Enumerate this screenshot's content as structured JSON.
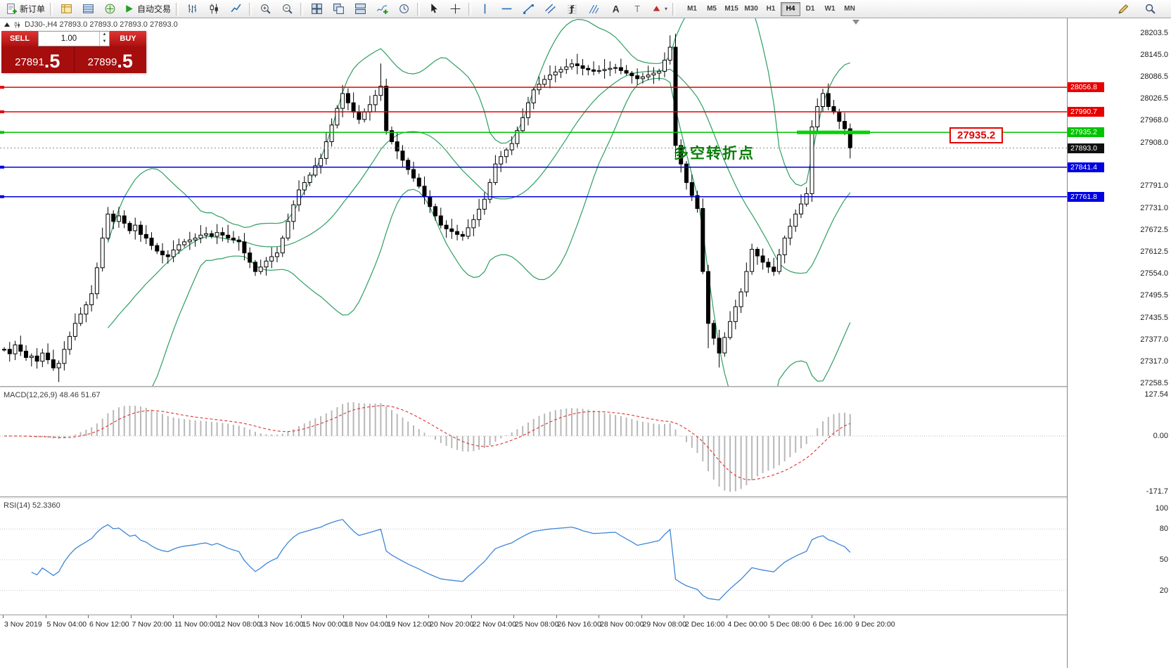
{
  "toolbar": {
    "new_order": "新订单",
    "autotrade": "自动交易",
    "timeframes": [
      "M1",
      "M5",
      "M15",
      "M30",
      "H1",
      "H4",
      "D1",
      "W1",
      "MN"
    ],
    "active_timeframe": "H4"
  },
  "chart": {
    "title": "DJ30-,H4 27893.0 27893.0 27893.0 27893.0",
    "annotation": "多空转折点",
    "float_label": "27935.2",
    "axis_ticks": [
      "28203.5",
      "28145.0",
      "28086.5",
      "28026.5",
      "27968.0",
      "27908.0",
      "27791.0",
      "27731.0",
      "27672.5",
      "27612.5",
      "27554.0",
      "27495.5",
      "27435.5",
      "27377.0",
      "27317.0",
      "27258.5"
    ],
    "lines": [
      {
        "price": 28056.8,
        "label": "28056.8",
        "color": "#e80000"
      },
      {
        "price": 27990.7,
        "label": "27990.7",
        "color": "#e80000"
      },
      {
        "price": 27935.2,
        "label": "27935.2",
        "color": "#00c400"
      },
      {
        "price": 27841.4,
        "label": "27841.4",
        "color": "#0000e0"
      },
      {
        "price": 27761.8,
        "label": "27761.8",
        "color": "#0000e0"
      }
    ],
    "current_price": {
      "price": 27893.0,
      "label": "27893.0",
      "tag_bg": "#101010"
    },
    "thick_segment": {
      "price": 27935.2,
      "color": "#00d400"
    }
  },
  "trade_panel": {
    "sell_label": "SELL",
    "buy_label": "BUY",
    "volume": "1.00",
    "sell_price": "27891",
    "sell_price_frac": ".5",
    "buy_price": "27899",
    "buy_price_frac": ".5"
  },
  "macd": {
    "label": "MACD(12,26,9) 48.46 51.67",
    "axis": [
      "127.54",
      "0.00",
      "-171.7"
    ]
  },
  "rsi": {
    "label": "RSI(14) 52.3360",
    "axis": [
      "100",
      "80",
      "50",
      "20"
    ],
    "levels": [
      80,
      50,
      20
    ]
  },
  "time_axis": [
    "3 Nov 2019",
    "5 Nov 04:00",
    "6 Nov 12:00",
    "7 Nov 20:00",
    "11 Nov 00:00",
    "12 Nov 08:00",
    "13 Nov 16:00",
    "15 Nov 00:00",
    "18 Nov 04:00",
    "19 Nov 12:00",
    "20 Nov 20:00",
    "22 Nov 04:00",
    "25 Nov 08:00",
    "26 Nov 16:00",
    "28 Nov 00:00",
    "29 Nov 08:00",
    "2 Dec 16:00",
    "4 Dec 00:00",
    "5 Dec 08:00",
    "6 Dec 16:00",
    "9 Dec 20:00"
  ],
  "chart_data": {
    "type": "candlestick",
    "symbol": "DJ30-",
    "timeframe": "H4",
    "visible_range": {
      "price_top": 28243,
      "price_bottom": 27251
    },
    "hline_levels": [
      28056.8,
      27990.7,
      27935.2,
      27841.4,
      27761.8
    ],
    "current_price": 27893.0,
    "bollinger": {
      "period": 20,
      "deviation": 2,
      "color": "#2f9e62"
    },
    "macd_params": {
      "fast": 12,
      "slow": 26,
      "signal": 9
    },
    "rsi_params": {
      "period": 14
    },
    "closes": [
      27350,
      27338,
      27362,
      27345,
      27328,
      27332,
      27318,
      27340,
      27322,
      27300,
      27312,
      27350,
      27385,
      27420,
      27445,
      27470,
      27500,
      27570,
      27650,
      27715,
      27695,
      27710,
      27690,
      27670,
      27685,
      27660,
      27650,
      27630,
      27615,
      27605,
      27600,
      27618,
      27632,
      27640,
      27645,
      27650,
      27658,
      27662,
      27655,
      27665,
      27658,
      27650,
      27645,
      27640,
      27610,
      27585,
      27560,
      27572,
      27588,
      27600,
      27610,
      27650,
      27695,
      27740,
      27780,
      27800,
      27820,
      27845,
      27865,
      27910,
      27955,
      28000,
      28040,
      28015,
      27990,
      27970,
      27990,
      28010,
      28035,
      28060,
      27940,
      27910,
      27885,
      27860,
      27835,
      27812,
      27790,
      27762,
      27735,
      27710,
      27685,
      27675,
      27668,
      27660,
      27655,
      27678,
      27700,
      27728,
      27755,
      27800,
      27850,
      27870,
      27888,
      27905,
      27940,
      27975,
      28015,
      28050,
      28065,
      28078,
      28090,
      28098,
      28105,
      28112,
      28120,
      28115,
      28108,
      28104,
      28100,
      28102,
      28105,
      28108,
      28110,
      28102,
      28095,
      28088,
      28080,
      28085,
      28090,
      28095,
      28100,
      28130,
      28165,
      27900,
      27850,
      27800,
      27765,
      27730,
      27560,
      27420,
      27380,
      27340,
      27382,
      27425,
      27465,
      27505,
      27560,
      27620,
      27602,
      27585,
      27572,
      27560,
      27605,
      27650,
      27682,
      27715,
      27742,
      27770,
      27950,
      28005,
      28040,
      28005,
      27990,
      27965,
      27945,
      27893
    ],
    "wick_boosts_high": {
      "9": 10,
      "69": 55,
      "122": 20,
      "123": 10,
      "148": 10
    },
    "wick_boosts_low": {
      "10": 15,
      "123": 25,
      "129": 45,
      "131": 25,
      "155": 15
    }
  }
}
